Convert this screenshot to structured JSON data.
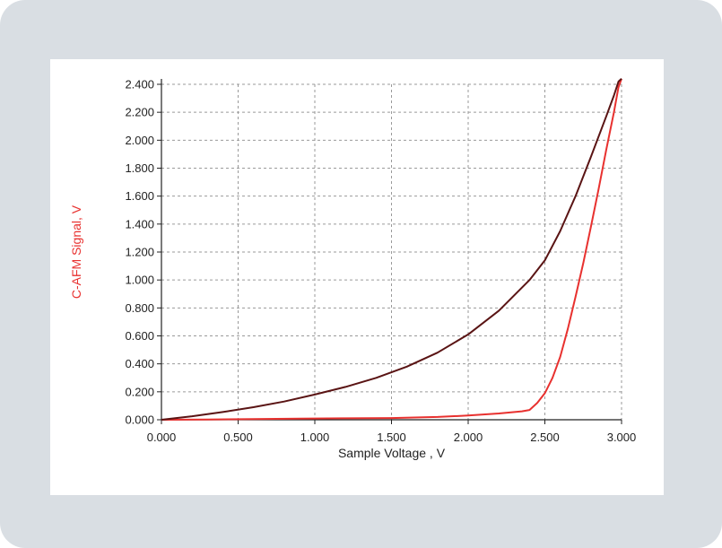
{
  "chart_data": {
    "type": "line",
    "title": "",
    "xlabel": "Sample Voltage , V",
    "ylabel": "C-AFM Signal, V",
    "xlim": [
      0,
      3.0
    ],
    "ylim": [
      0,
      2.4
    ],
    "xticks": [
      "0.000",
      "0.500",
      "1.000",
      "1.500",
      "2.000",
      "2.500",
      "3.000"
    ],
    "yticks": [
      "0.000",
      "0.200",
      "0.400",
      "0.600",
      "0.800",
      "1.000",
      "1.200",
      "1.400",
      "1.600",
      "1.800",
      "2.000",
      "2.200",
      "2.400"
    ],
    "grid": true,
    "colors": {
      "forward": "#e8312f",
      "reverse": "#5a1414",
      "ylabel": "#e8312f",
      "axes": "#222222",
      "grid": "#9a9a9a"
    },
    "series": [
      {
        "color": "#e8312f",
        "x": [
          0.0,
          0.3,
          0.6,
          0.9,
          1.2,
          1.5,
          1.8,
          2.0,
          2.2,
          2.35,
          2.4,
          2.45,
          2.5,
          2.55,
          2.6,
          2.65,
          2.7,
          2.75,
          2.8,
          2.85,
          2.9,
          2.95,
          2.98,
          3.0
        ],
        "y": [
          0.0,
          0.002,
          0.005,
          0.008,
          0.01,
          0.012,
          0.02,
          0.03,
          0.045,
          0.06,
          0.07,
          0.12,
          0.19,
          0.3,
          0.45,
          0.65,
          0.88,
          1.12,
          1.38,
          1.65,
          1.93,
          2.2,
          2.38,
          2.44
        ]
      },
      {
        "color": "#5a1414",
        "x": [
          0.0,
          0.2,
          0.4,
          0.6,
          0.8,
          1.0,
          1.2,
          1.4,
          1.6,
          1.8,
          2.0,
          2.2,
          2.4,
          2.5,
          2.6,
          2.7,
          2.8,
          2.9,
          2.95,
          2.98,
          3.0
        ],
        "y": [
          0.0,
          0.025,
          0.055,
          0.09,
          0.13,
          0.18,
          0.235,
          0.3,
          0.38,
          0.48,
          0.61,
          0.78,
          1.0,
          1.14,
          1.35,
          1.6,
          1.88,
          2.17,
          2.32,
          2.42,
          2.44
        ]
      }
    ]
  }
}
